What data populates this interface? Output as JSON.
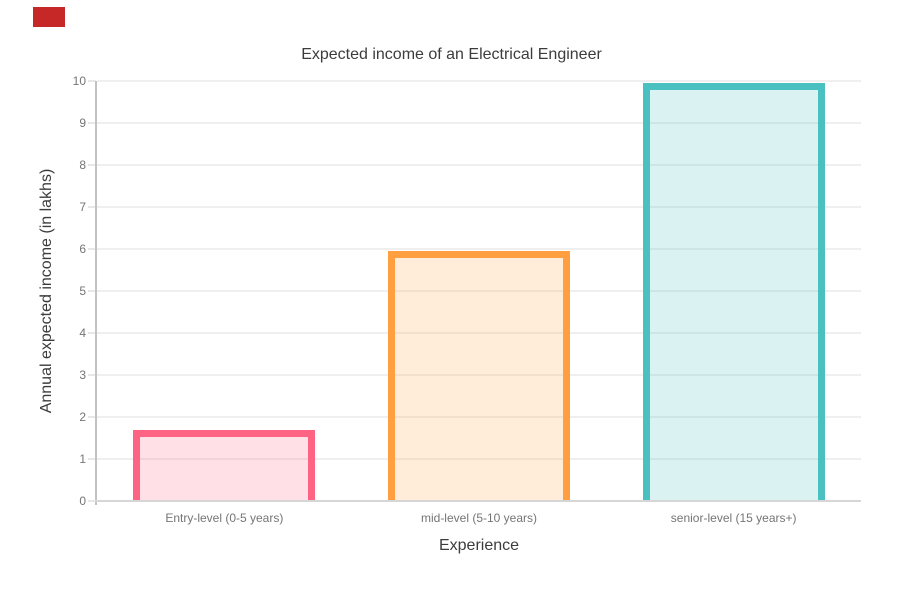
{
  "annotation_marker": {
    "color": "#c62828"
  },
  "chart_data": {
    "type": "bar",
    "title": "Expected income of an Electrical Engineer",
    "categories": [
      "Entry-level (0-5 years)",
      "mid-level (5-10 years)",
      "senior-level (15 years+)"
    ],
    "values": [
      1.7,
      5.95,
      9.95
    ],
    "xlabel": "Experience",
    "ylabel": "Annual expected income (in lakhs)",
    "ylim": [
      0,
      10
    ],
    "yticks": [
      0,
      1,
      2,
      3,
      4,
      5,
      6,
      7,
      8,
      9,
      10
    ],
    "grid": true,
    "legend": false,
    "bar_border_colors": [
      "#ff6384",
      "#ff9f40",
      "#4bc0c0"
    ],
    "bar_fill_colors": [
      "rgba(255,99,132,0.2)",
      "rgba(255,159,64,0.2)",
      "rgba(75,192,192,0.2)"
    ],
    "colors": {
      "grid_line": "#efefef",
      "tick_mark": "#e7e7e7",
      "y_axis_line": "#c2c2c2",
      "x_axis_line": "#d6d6d6",
      "tick_label": "#757575",
      "title_text": "#3c3c3c",
      "axis_title_text": "#3c3c3c"
    }
  }
}
